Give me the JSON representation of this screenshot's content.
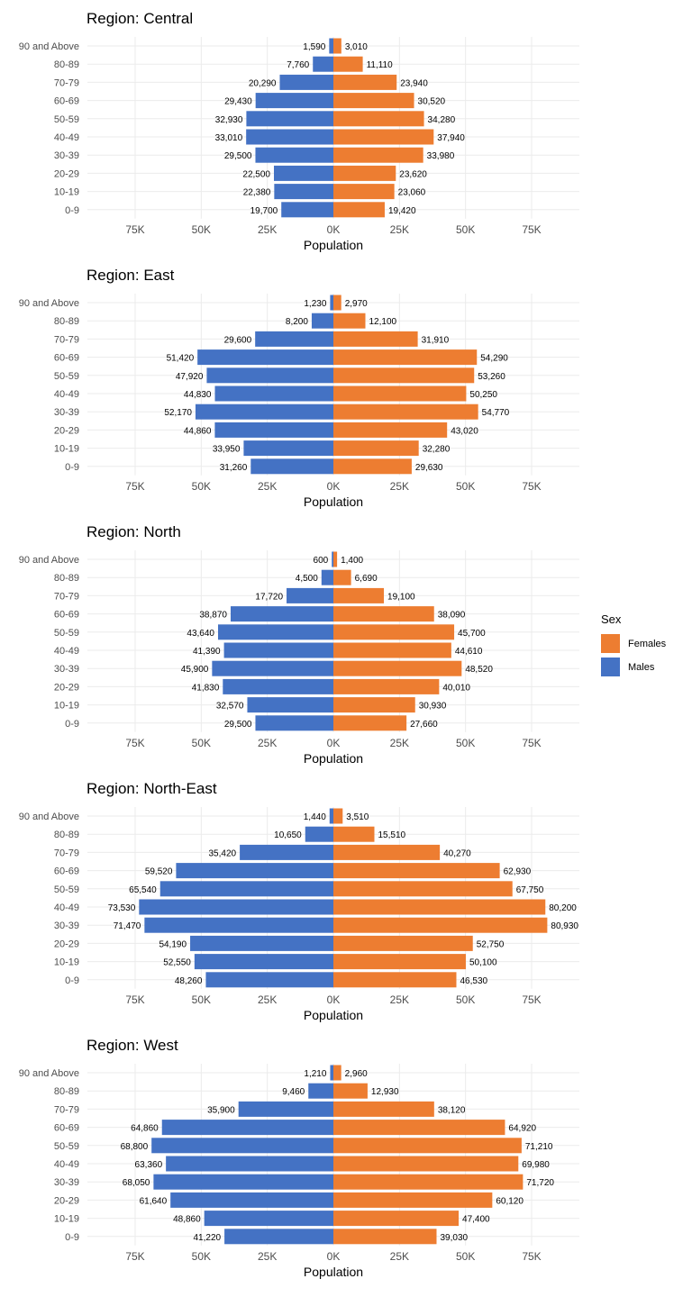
{
  "colors": {
    "females": "#ED7D31",
    "males": "#4472C4",
    "grid": "#EBEBEB",
    "axis_text": "#4D4D4D"
  },
  "legend": {
    "title": "Sex",
    "items": [
      {
        "label": "Females",
        "color": "#ED7D31"
      },
      {
        "label": "Males",
        "color": "#4472C4"
      }
    ]
  },
  "chart_data": [
    {
      "type": "bar",
      "title": "Region: Central",
      "xlabel": "Population",
      "categories": [
        "90 and Above",
        "80-89",
        "70-79",
        "60-69",
        "50-59",
        "40-49",
        "30-39",
        "20-29",
        "10-19",
        "0-9"
      ],
      "x_ticks": [
        "75K",
        "50K",
        "25K",
        "0K",
        "25K",
        "50K",
        "75K"
      ],
      "series": [
        {
          "name": "Females",
          "values": [
            3010,
            11110,
            23940,
            30520,
            34280,
            37940,
            33980,
            23620,
            23060,
            19420
          ],
          "labels": [
            "3,010",
            "11,110",
            "23,940",
            "30,520",
            "34,280",
            "37,940",
            "33,980",
            "23,620",
            "23,060",
            "19,420"
          ]
        },
        {
          "name": "Males",
          "values": [
            1590,
            7760,
            20290,
            29430,
            32930,
            33010,
            29500,
            22500,
            22380,
            19700
          ],
          "labels": [
            "1,590",
            "7,760",
            "20,290",
            "29,430",
            "32,930",
            "33,010",
            "29,500",
            "22,500",
            "22,380",
            "19,700"
          ]
        }
      ]
    },
    {
      "type": "bar",
      "title": "Region: East",
      "xlabel": "Population",
      "categories": [
        "90 and Above",
        "80-89",
        "70-79",
        "60-69",
        "50-59",
        "40-49",
        "30-39",
        "20-29",
        "10-19",
        "0-9"
      ],
      "x_ticks": [
        "75K",
        "50K",
        "25K",
        "0K",
        "25K",
        "50K",
        "75K"
      ],
      "series": [
        {
          "name": "Females",
          "values": [
            2970,
            12100,
            31910,
            54290,
            53260,
            50250,
            54770,
            43020,
            32280,
            29630
          ],
          "labels": [
            "2,970",
            "12,100",
            "31,910",
            "54,290",
            "53,260",
            "50,250",
            "54,770",
            "43,020",
            "32,280",
            "29,630"
          ]
        },
        {
          "name": "Males",
          "values": [
            1230,
            8200,
            29600,
            51420,
            47920,
            44830,
            52170,
            44860,
            33950,
            31260
          ],
          "labels": [
            "1,230",
            "8,200",
            "29,600",
            "51,420",
            "47,920",
            "44,830",
            "52,170",
            "44,860",
            "33,950",
            "31,260"
          ]
        }
      ]
    },
    {
      "type": "bar",
      "title": "Region: North",
      "xlabel": "Population",
      "categories": [
        "90 and Above",
        "80-89",
        "70-79",
        "60-69",
        "50-59",
        "40-49",
        "30-39",
        "20-29",
        "10-19",
        "0-9"
      ],
      "x_ticks": [
        "75K",
        "50K",
        "25K",
        "0K",
        "25K",
        "50K",
        "75K"
      ],
      "series": [
        {
          "name": "Females",
          "values": [
            1400,
            6690,
            19100,
            38090,
            45700,
            44610,
            48520,
            40010,
            30930,
            27660
          ],
          "labels": [
            "1,400",
            "6,690",
            "19,100",
            "38,090",
            "45,700",
            "44,610",
            "48,520",
            "40,010",
            "30,930",
            "27,660"
          ]
        },
        {
          "name": "Males",
          "values": [
            600,
            4500,
            17720,
            38870,
            43640,
            41390,
            45900,
            41830,
            32570,
            29500
          ],
          "labels": [
            "600",
            "4,500",
            "17,720",
            "38,870",
            "43,640",
            "41,390",
            "45,900",
            "41,830",
            "32,570",
            "29,500"
          ]
        }
      ]
    },
    {
      "type": "bar",
      "title": "Region: North-East",
      "xlabel": "Population",
      "categories": [
        "90 and Above",
        "80-89",
        "70-79",
        "60-69",
        "50-59",
        "40-49",
        "30-39",
        "20-29",
        "10-19",
        "0-9"
      ],
      "x_ticks": [
        "75K",
        "50K",
        "25K",
        "0K",
        "25K",
        "50K",
        "75K"
      ],
      "series": [
        {
          "name": "Females",
          "values": [
            3510,
            15510,
            40270,
            62930,
            67750,
            80200,
            80930,
            52750,
            50100,
            46530
          ],
          "labels": [
            "3,510",
            "15,510",
            "40,270",
            "62,930",
            "67,750",
            "80,200",
            "80,930",
            "52,750",
            "50,100",
            "46,530"
          ]
        },
        {
          "name": "Males",
          "values": [
            1440,
            10650,
            35420,
            59520,
            65540,
            73530,
            71470,
            54190,
            52550,
            48260
          ],
          "labels": [
            "1,440",
            "10,650",
            "35,420",
            "59,520",
            "65,540",
            "73,530",
            "71,470",
            "54,190",
            "52,550",
            "48,260"
          ]
        }
      ]
    },
    {
      "type": "bar",
      "title": "Region: West",
      "xlabel": "Population",
      "categories": [
        "90 and Above",
        "80-89",
        "70-79",
        "60-69",
        "50-59",
        "40-49",
        "30-39",
        "20-29",
        "10-19",
        "0-9"
      ],
      "x_ticks": [
        "75K",
        "50K",
        "25K",
        "0K",
        "25K",
        "50K",
        "75K"
      ],
      "series": [
        {
          "name": "Females",
          "values": [
            2960,
            12930,
            38120,
            64920,
            71210,
            69980,
            71720,
            60120,
            47400,
            39030
          ],
          "labels": [
            "2,960",
            "12,930",
            "38,120",
            "64,920",
            "71,210",
            "69,980",
            "71,720",
            "60,120",
            "47,400",
            "39,030"
          ]
        },
        {
          "name": "Males",
          "values": [
            1210,
            9460,
            35900,
            64860,
            68800,
            63360,
            68050,
            61640,
            48860,
            41220
          ],
          "labels": [
            "1,210",
            "9,460",
            "35,900",
            "64,860",
            "68,800",
            "63,360",
            "68,050",
            "61,640",
            "48,860",
            "41,220"
          ]
        }
      ]
    }
  ]
}
